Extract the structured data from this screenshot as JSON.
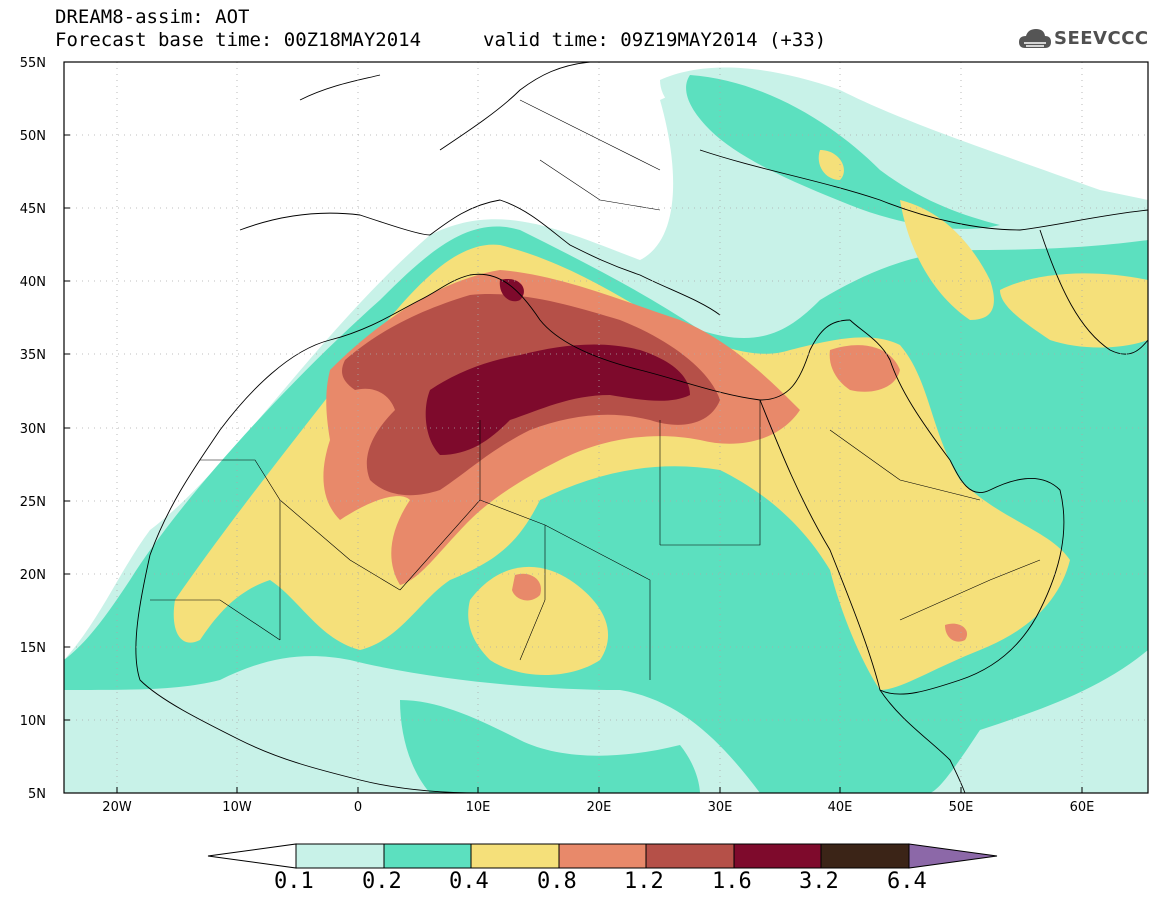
{
  "header": {
    "title": "DREAM8-assim: AOT",
    "forecast_base": "Forecast base time: 00Z18MAY2014",
    "valid_time": "valid time: 09Z19MAY2014 (+33)"
  },
  "logo": {
    "text": "SEEVCCC",
    "icon": "cloud-icon"
  },
  "map": {
    "lon_range": [
      -25,
      65
    ],
    "lat_range": [
      5,
      55
    ],
    "lat_labels": [
      "55N",
      "50N",
      "45N",
      "40N",
      "35N",
      "30N",
      "25N",
      "20N",
      "15N",
      "10N",
      "5N"
    ],
    "lon_labels": [
      "20W",
      "10W",
      "0",
      "10E",
      "20E",
      "30E",
      "40E",
      "50E",
      "60E"
    ]
  },
  "colorbar": {
    "thresholds": [
      "0.1",
      "0.2",
      "0.4",
      "0.8",
      "1.2",
      "1.6",
      "3.2",
      "6.4"
    ],
    "colors": [
      "#c8f2e8",
      "#5ce0bf",
      "#f5e07a",
      "#e8896a",
      "#b55048",
      "#7e0a2c",
      "#3b2417",
      "#8c68a8"
    ]
  }
}
